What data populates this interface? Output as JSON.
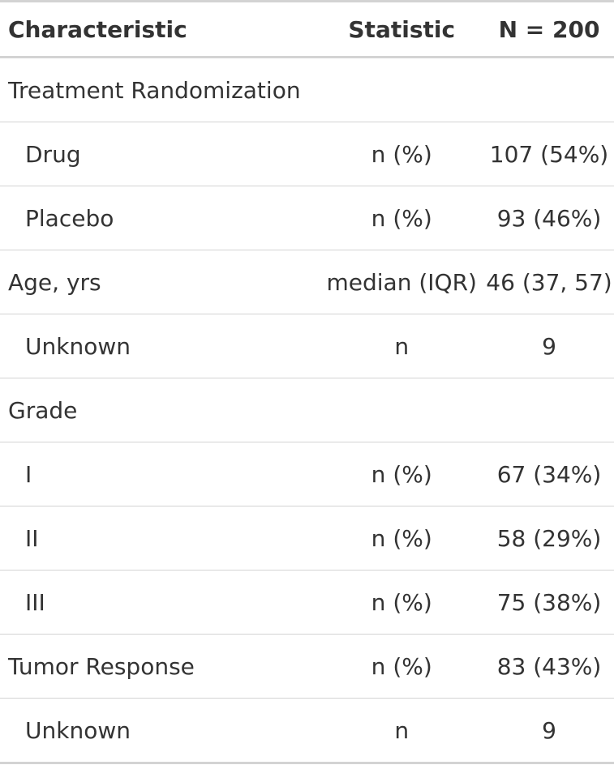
{
  "table": {
    "headers": {
      "characteristic": "Characteristic",
      "statistic": "Statistic",
      "n": "N = 200"
    },
    "rows": [
      {
        "characteristic": "Treatment Randomization",
        "statistic": "",
        "value": "",
        "indent": false
      },
      {
        "characteristic": "Drug",
        "statistic": "n (%)",
        "value": "107 (54%)",
        "indent": true
      },
      {
        "characteristic": "Placebo",
        "statistic": "n (%)",
        "value": "93 (46%)",
        "indent": true
      },
      {
        "characteristic": "Age, yrs",
        "statistic": "median (IQR)",
        "value": "46 (37, 57)",
        "indent": false
      },
      {
        "characteristic": "Unknown",
        "statistic": "n",
        "value": "9",
        "indent": true
      },
      {
        "characteristic": "Grade",
        "statistic": "",
        "value": "",
        "indent": false
      },
      {
        "characteristic": "I",
        "statistic": "n (%)",
        "value": "67 (34%)",
        "indent": true
      },
      {
        "characteristic": "II",
        "statistic": "n (%)",
        "value": "58 (29%)",
        "indent": true
      },
      {
        "characteristic": "III",
        "statistic": "n (%)",
        "value": "75 (38%)",
        "indent": true
      },
      {
        "characteristic": "Tumor Response",
        "statistic": "n (%)",
        "value": "83 (43%)",
        "indent": false
      },
      {
        "characteristic": "Unknown",
        "statistic": "n",
        "value": "9",
        "indent": true
      }
    ]
  }
}
